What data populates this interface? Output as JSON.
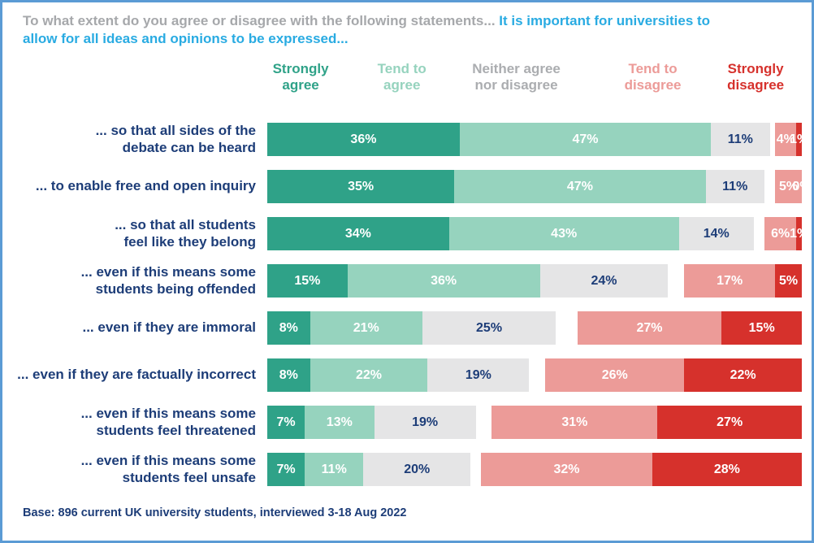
{
  "title": {
    "prefix_gray": "To what extent do you agree or disagree with the following statements... ",
    "highlight_blue": "It is important for universities to allow for all ideas and opinions to be expressed..."
  },
  "legend": {
    "labels": [
      "Strongly\nagree",
      "Tend to\nagree",
      "Neither agree\nnor disagree",
      "Tend to\ndisagree",
      "Strongly\ndisagree"
    ],
    "colors": [
      "#2fa288",
      "#96d3be",
      "#abadb0",
      "#ec9b98",
      "#d6312c"
    ]
  },
  "base_note": "Base: 896 current UK university students, interviewed 3-18 Aug 2022",
  "colors": {
    "strongly_agree": "#2fa288",
    "tend_to_agree": "#96d3be",
    "neither": "#e5e5e6",
    "tend_to_disagree": "#ec9b98",
    "strongly_disagree": "#d6312c",
    "label_navy": "#1d3d78",
    "title_gray": "#a6a8ab",
    "title_blue": "#29abe2",
    "frame_border": "#5b9bd5"
  },
  "chart_data": {
    "type": "bar",
    "orientation": "horizontal",
    "stacked": true,
    "unit": "%",
    "xlim": [
      0,
      100
    ],
    "legend_position": "top",
    "alignment": "agree segments left-aligned, disagree segments right-aligned",
    "title": "To what extent do you agree or disagree with the following statements... It is important for universities to allow for all ideas and opinions to be expressed...",
    "categories": [
      "... so that all sides of the\ndebate can be heard",
      "... to enable free and open inquiry",
      "... so that all students\nfeel like they belong",
      "... even if this means some\nstudents being offended",
      "... even if they are immoral",
      "... even if they are factually incorrect",
      "... even if this means some\nstudents feel threatened",
      "... even if this means some\nstudents feel unsafe"
    ],
    "series": [
      {
        "name": "Strongly agree",
        "key": "strongly-agree",
        "color": "#2fa288",
        "values": [
          36,
          35,
          34,
          15,
          8,
          8,
          7,
          7
        ]
      },
      {
        "name": "Tend to agree",
        "key": "tend-to-agree",
        "color": "#96d3be",
        "values": [
          47,
          47,
          43,
          36,
          21,
          22,
          13,
          11
        ]
      },
      {
        "name": "Neither agree nor disagree",
        "key": "neither",
        "color": "#e5e5e6",
        "values": [
          11,
          11,
          14,
          24,
          25,
          19,
          19,
          20
        ]
      },
      {
        "name": "Tend to disagree",
        "key": "tend-to-disagree",
        "color": "#ec9b98",
        "values": [
          4,
          5,
          6,
          17,
          27,
          26,
          31,
          32
        ]
      },
      {
        "name": "Strongly disagree",
        "key": "strongly-disagree",
        "color": "#d6312c",
        "values": [
          1,
          0,
          1,
          5,
          15,
          22,
          27,
          28
        ]
      }
    ],
    "base_note": "Base: 896 current UK university students, interviewed 3-18 Aug 2022"
  }
}
